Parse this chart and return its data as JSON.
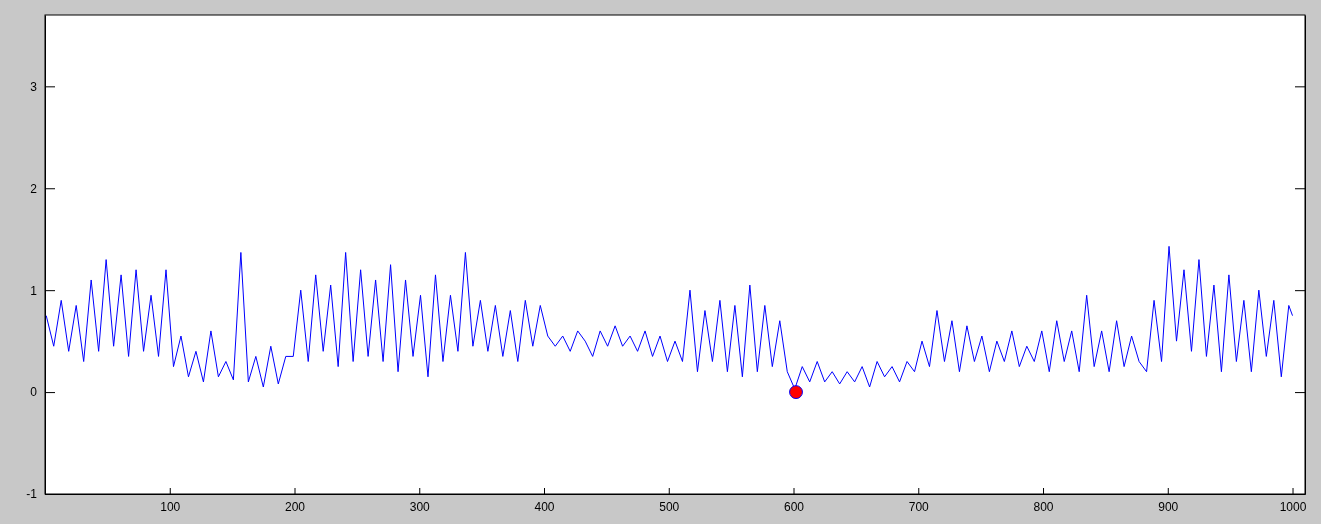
{
  "chart_data": {
    "type": "line",
    "xlim": [
      0,
      1010
    ],
    "ylim": [
      -1,
      3.7
    ],
    "xticks": [
      100,
      200,
      300,
      400,
      500,
      600,
      700,
      800,
      900,
      1000
    ],
    "yticks": [
      -1,
      0,
      1,
      2,
      3
    ],
    "grid": false,
    "line_style": "solid",
    "series": [
      {
        "color": "#0000ff",
        "x": [
          1,
          7,
          13,
          19,
          25,
          31,
          37,
          43,
          49,
          55,
          61,
          67,
          73,
          79,
          85,
          91,
          97,
          103,
          109,
          115,
          121,
          127,
          133,
          139,
          145,
          151,
          157,
          163,
          169,
          175,
          181,
          187,
          193,
          199,
          205,
          211,
          217,
          223,
          229,
          235,
          241,
          247,
          253,
          259,
          265,
          271,
          277,
          283,
          289,
          295,
          301,
          307,
          313,
          319,
          325,
          331,
          337,
          343,
          349,
          355,
          361,
          367,
          373,
          379,
          385,
          391,
          397,
          403,
          409,
          415,
          421,
          427,
          433,
          439,
          445,
          451,
          457,
          463,
          469,
          475,
          481,
          487,
          493,
          499,
          505,
          511,
          517,
          523,
          529,
          535,
          541,
          547,
          553,
          559,
          565,
          571,
          577,
          583,
          589,
          595,
          601,
          607,
          613,
          619,
          625,
          631,
          637,
          643,
          649,
          655,
          661,
          667,
          673,
          679,
          685,
          691,
          697,
          703,
          709,
          715,
          721,
          727,
          733,
          739,
          745,
          751,
          757,
          763,
          769,
          775,
          781,
          787,
          793,
          799,
          805,
          811,
          817,
          823,
          829,
          835,
          841,
          847,
          853,
          859,
          865,
          871,
          877,
          883,
          889,
          895,
          901,
          907,
          913,
          919,
          925,
          931,
          937,
          943,
          949,
          955,
          961,
          967,
          973,
          979,
          985,
          991,
          997,
          1000
        ],
        "values": [
          0.75,
          0.45,
          0.9,
          0.4,
          0.85,
          0.3,
          1.1,
          0.4,
          1.3,
          0.45,
          1.15,
          0.35,
          1.2,
          0.4,
          0.95,
          0.35,
          1.2,
          0.25,
          0.55,
          0.15,
          0.4,
          0.1,
          0.6,
          0.15,
          0.3,
          0.12,
          1.37,
          0.1,
          0.35,
          0.05,
          0.45,
          0.08,
          0.35,
          0.35,
          1.0,
          0.3,
          1.15,
          0.4,
          1.05,
          0.25,
          1.37,
          0.3,
          1.2,
          0.35,
          1.1,
          0.3,
          1.25,
          0.2,
          1.1,
          0.35,
          0.95,
          0.15,
          1.15,
          0.3,
          0.95,
          0.4,
          1.37,
          0.45,
          0.9,
          0.4,
          0.85,
          0.35,
          0.8,
          0.3,
          0.9,
          0.45,
          0.85,
          0.55,
          0.45,
          0.55,
          0.4,
          0.6,
          0.5,
          0.35,
          0.6,
          0.45,
          0.65,
          0.45,
          0.55,
          0.4,
          0.6,
          0.35,
          0.55,
          0.3,
          0.5,
          0.3,
          1.0,
          0.2,
          0.8,
          0.3,
          0.9,
          0.2,
          0.85,
          0.15,
          1.05,
          0.2,
          0.85,
          0.25,
          0.7,
          0.2,
          0.03,
          0.25,
          0.1,
          0.3,
          0.1,
          0.2,
          0.08,
          0.2,
          0.1,
          0.25,
          0.05,
          0.3,
          0.15,
          0.25,
          0.1,
          0.3,
          0.2,
          0.5,
          0.25,
          0.8,
          0.3,
          0.7,
          0.2,
          0.65,
          0.3,
          0.55,
          0.2,
          0.5,
          0.3,
          0.6,
          0.25,
          0.45,
          0.3,
          0.6,
          0.2,
          0.7,
          0.3,
          0.6,
          0.2,
          0.95,
          0.25,
          0.6,
          0.2,
          0.7,
          0.25,
          0.55,
          0.3,
          0.2,
          0.9,
          0.3,
          1.43,
          0.5,
          1.2,
          0.4,
          1.3,
          0.35,
          1.05,
          0.2,
          1.15,
          0.3,
          0.9,
          0.2,
          1.0,
          0.35,
          0.9,
          0.15,
          0.85,
          0.75
        ]
      },
      {
        "type": "scatter",
        "color": "#ff0000",
        "marker": "circle",
        "x": [
          602
        ],
        "values": [
          0
        ]
      }
    ]
  }
}
